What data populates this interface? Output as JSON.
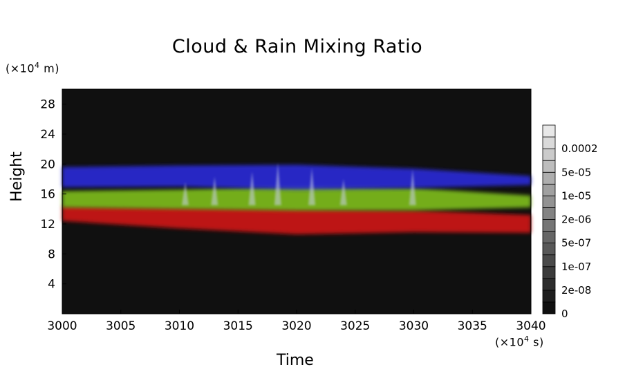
{
  "chart_data": {
    "type": "heatmap",
    "title": "Cloud & Rain Mixing Ratio",
    "xlabel": "Time",
    "ylabel": "Height",
    "x_unit": {
      "prefix": "(×10",
      "exp": "4",
      "suffix": " s)"
    },
    "y_unit": {
      "prefix": "(×10",
      "exp": "4",
      "suffix": " m)"
    },
    "xlim": [
      3000,
      3040
    ],
    "ylim": [
      0,
      30
    ],
    "x_ticks": [
      "3000",
      "3005",
      "3010",
      "3015",
      "3020",
      "3025",
      "3030",
      "3035",
      "3040"
    ],
    "x_tick_values": [
      3000,
      3005,
      3010,
      3015,
      3020,
      3025,
      3030,
      3035,
      3040
    ],
    "y_ticks": [
      "4",
      "8",
      "12",
      "16",
      "20",
      "24",
      "28"
    ],
    "y_tick_values": [
      4,
      8,
      12,
      16,
      20,
      24,
      28
    ],
    "colorbar_labels": [
      "0",
      "2e-08",
      "1e-07",
      "5e-07",
      "2e-06",
      "1e-05",
      "5e-05",
      "0.0002"
    ],
    "bands": [
      {
        "color": "#2a2ad8",
        "profile": [
          [
            3000,
            16.9,
            19.6
          ],
          [
            3010,
            17.0,
            19.8
          ],
          [
            3020,
            16.6,
            19.9
          ],
          [
            3030,
            16.8,
            19.4
          ],
          [
            3040,
            17.2,
            18.4
          ]
        ]
      },
      {
        "color": "#7fbf1a",
        "profile": [
          [
            3000,
            14.2,
            16.4
          ],
          [
            3010,
            14.0,
            16.6
          ],
          [
            3020,
            13.8,
            17.0
          ],
          [
            3030,
            13.8,
            16.8
          ],
          [
            3040,
            14.2,
            15.8
          ]
        ]
      },
      {
        "color": "#d01515",
        "profile": [
          [
            3000,
            12.4,
            14.4
          ],
          [
            3010,
            11.4,
            14.2
          ],
          [
            3020,
            10.6,
            14.0
          ],
          [
            3030,
            10.9,
            13.8
          ],
          [
            3040,
            10.8,
            13.2
          ]
        ]
      }
    ],
    "spikes": [
      {
        "x": 3018.4,
        "top": 20.2
      },
      {
        "x": 3021.3,
        "top": 19.5
      },
      {
        "x": 3016.2,
        "top": 19.0
      },
      {
        "x": 3029.9,
        "top": 19.3
      },
      {
        "x": 3013.0,
        "top": 18.3
      },
      {
        "x": 3024.0,
        "top": 18.0
      },
      {
        "x": 3010.5,
        "top": 17.6
      }
    ]
  }
}
